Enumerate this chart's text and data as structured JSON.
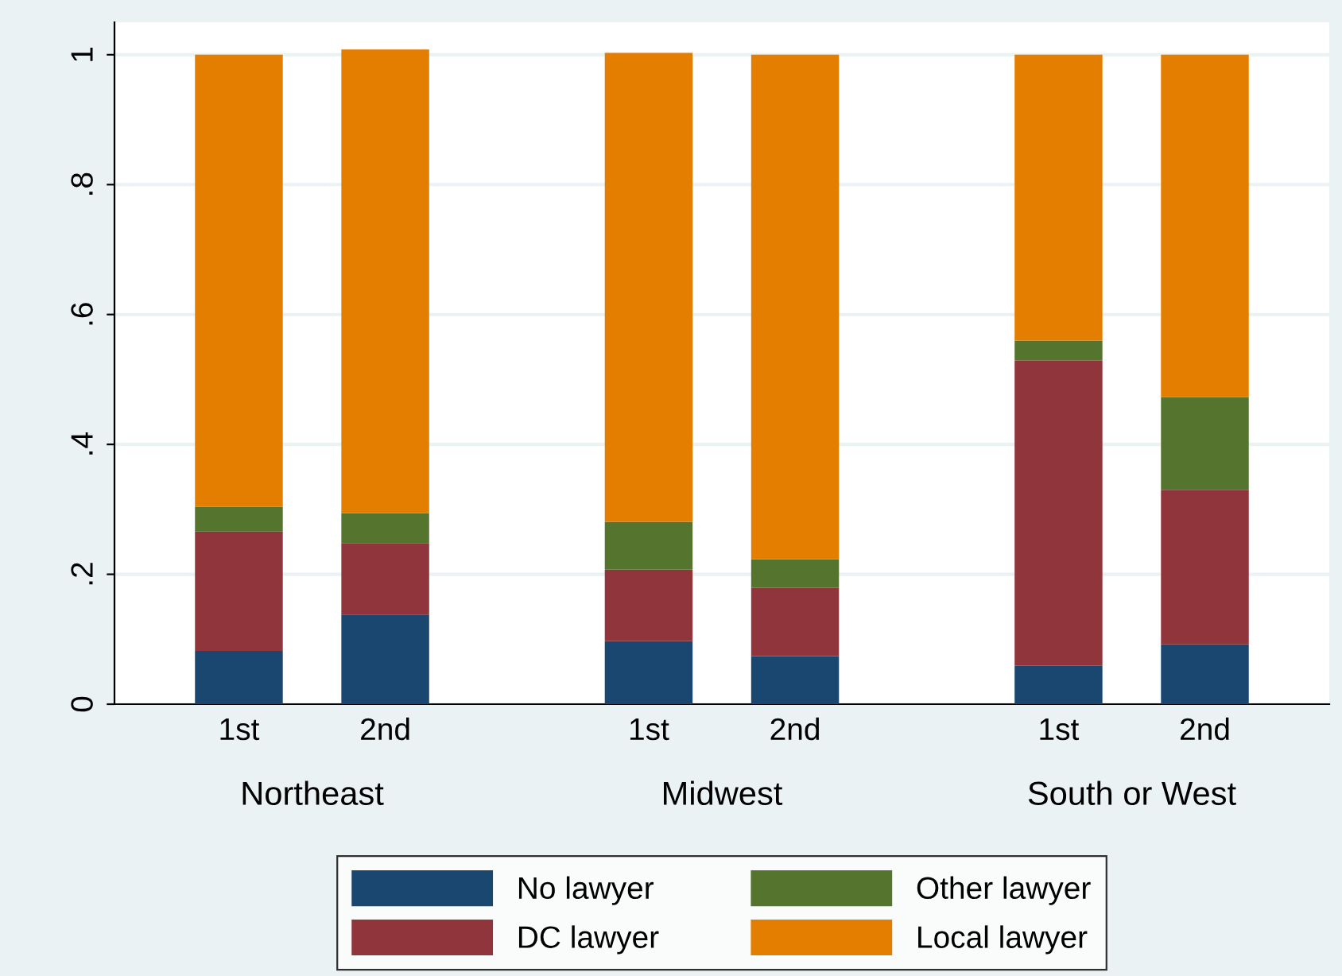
{
  "chart_data": {
    "type": "bar",
    "stacked": true,
    "categories": [
      "1st",
      "2nd",
      "1st",
      "2nd",
      "1st",
      "2nd"
    ],
    "series": [
      {
        "name": "No lawyer",
        "color": "#1a476f",
        "values": [
          0.082,
          0.138,
          0.097,
          0.074,
          0.059,
          0.092
        ]
      },
      {
        "name": "DC lawyer",
        "color": "#90353b",
        "values": [
          0.184,
          0.11,
          0.11,
          0.105,
          0.47,
          0.238
        ]
      },
      {
        "name": "Other lawyer",
        "color": "#55752f",
        "values": [
          0.038,
          0.046,
          0.074,
          0.044,
          0.031,
          0.143
        ]
      },
      {
        "name": "Local lawyer",
        "color": "#e37e00",
        "values": [
          0.696,
          0.714,
          0.722,
          0.777,
          0.44,
          0.527
        ]
      }
    ],
    "annotations": [
      "Northeast",
      "Midwest",
      "South or West"
    ],
    "ylim": [
      0,
      1.05
    ],
    "yticks": [
      {
        "value": 0,
        "label": "0"
      },
      {
        "value": 0.2,
        "label": ".2"
      },
      {
        "value": 0.4,
        "label": ".4"
      },
      {
        "value": 0.6,
        "label": ".6"
      },
      {
        "value": 0.8,
        "label": ".8"
      },
      {
        "value": 1,
        "label": "1"
      }
    ],
    "grid": "y",
    "legend": "bottom"
  }
}
